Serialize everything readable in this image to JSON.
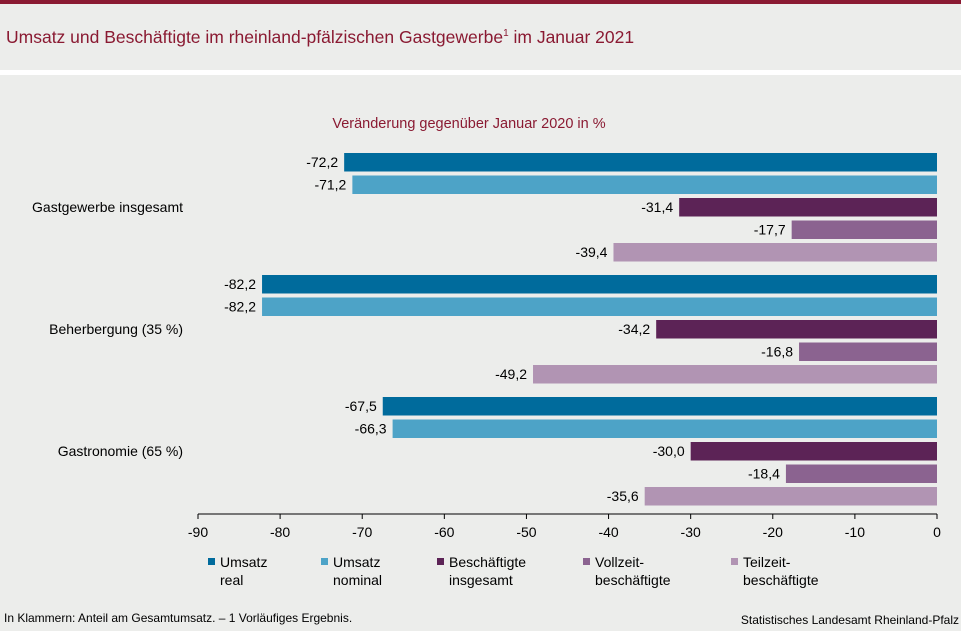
{
  "header": {
    "title": "Umsatz und Beschäftigte im rheinland-pfälzischen Gastgewerbe",
    "title_sup": "1",
    "title_suffix": " im Januar 2021"
  },
  "chart_data": {
    "type": "bar",
    "orientation": "horizontal",
    "subtitle": "Veränderung gegenüber Januar 2020 in %",
    "categories": [
      "Gastgewerbe insgesamt",
      "Beherbergung (35 %)",
      "Gastronomie (65 %)"
    ],
    "series": [
      {
        "name": "Umsatz real",
        "legend_lines": [
          "Umsatz",
          "real"
        ],
        "color": "#006b9c",
        "values": [
          -72.2,
          -82.2,
          -67.5
        ],
        "labels": [
          "-72,2",
          "-82,2",
          "-67,5"
        ]
      },
      {
        "name": "Umsatz nominal",
        "legend_lines": [
          "Umsatz",
          "nominal"
        ],
        "color": "#4da3c7",
        "values": [
          -71.2,
          -82.2,
          -66.3
        ],
        "labels": [
          "-71,2",
          "-82,2",
          "-66,3"
        ]
      },
      {
        "name": "Beschäftigte insgesamt",
        "legend_lines": [
          "Beschäftigte",
          "insgesamt"
        ],
        "color": "#5c2356",
        "values": [
          -31.4,
          -34.2,
          -30.0
        ],
        "labels": [
          "-31,4",
          "-34,2",
          "-30,0"
        ]
      },
      {
        "name": "Vollzeitbeschäftigte",
        "legend_lines": [
          "Vollzeit-",
          "beschäftigte"
        ],
        "color": "#8b6390",
        "values": [
          -17.7,
          -16.8,
          -18.4
        ],
        "labels": [
          "-17,7",
          "-16,8",
          "-18,4"
        ]
      },
      {
        "name": "Teilzeitbeschäftigte",
        "legend_lines": [
          "Teilzeit-",
          "beschäftigte"
        ],
        "color": "#b194b3",
        "values": [
          -39.4,
          -49.2,
          -35.6
        ],
        "labels": [
          "-39,4",
          "-49,2",
          "-35,6"
        ]
      }
    ],
    "xlim": [
      -90,
      0
    ],
    "xticks": [
      -90,
      -80,
      -70,
      -60,
      -50,
      -40,
      -30,
      -20,
      -10,
      0
    ],
    "grid": false,
    "legend_position": "bottom"
  },
  "footer": {
    "note": "In Klammern: Anteil am Gesamtumsatz. – 1 Vorläufiges Ergebnis.",
    "source": "Statistisches Landesamt Rheinland-Pfalz"
  }
}
